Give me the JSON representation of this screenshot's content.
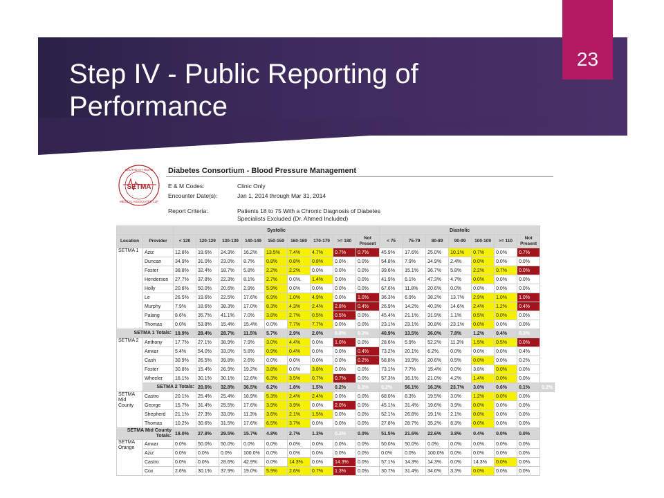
{
  "slide": {
    "number": "23",
    "title": "Step IV - Public Reporting of Performance"
  },
  "report": {
    "logo_text": "SOUTHEAST TEXAS MEDICAL ASSOCIATES, LLP",
    "logo_abbr": "SETMA",
    "title": "Diabetes Consortium - Blood Pressure Management",
    "em_codes_label": "E & M Codes:",
    "em_codes_value": "Clinic Only",
    "encounter_label": "Encounter Date(s):",
    "encounter_value": "Jan 1, 2014 through Mar 31, 2014",
    "criteria_label": "Report Criteria:",
    "criteria_value_1": "Patients 18 to 75 With a Chronic Diagnosis of Diabetes",
    "criteria_value_2": "Specialists Excluded (Dr. Ahmed Included)"
  },
  "table": {
    "group_headers": {
      "systolic": "Systolic",
      "diastolic": "Diastolic"
    },
    "columns": [
      "Location",
      "Provider",
      "< 120",
      "120-129",
      "130-139",
      "140-149",
      "150-159",
      "160-169",
      "170-179",
      ">= 180",
      "Not Present",
      "< 75",
      "75-79",
      "80-89",
      "90-99",
      "100-109",
      ">= 110",
      "Not Present"
    ],
    "highlight_colors": {
      "yellow": "#f5f100",
      "red": "#a3151c"
    },
    "rows": [
      {
        "loc": "SETMA 1",
        "locspan": 9,
        "prov": "Aziz",
        "v": [
          "12.8%",
          "19.6%",
          "24.3%",
          "16.2%",
          "13.5%",
          "7.4%",
          "4.7%",
          "0.7%",
          "0.7%",
          "45.9%",
          "17.6%",
          "25.0%",
          "10.1%",
          "0.7%",
          "0.0%",
          "0.7%"
        ],
        "h": "....yyyrr...yy.r"
      },
      {
        "prov": "Duncan",
        "v": [
          "34.9%",
          "31.0%",
          "23.0%",
          "8.7%",
          "0.8%",
          "0.8%",
          "0.8%",
          "0.0%",
          "0.0%",
          "54.8%",
          "7.9%",
          "34.9%",
          "2.4%",
          "0.0%",
          "0.0%",
          "0.0%"
        ],
        "h": "....yyy......y.."
      },
      {
        "prov": "Foster",
        "v": [
          "38.8%",
          "32.4%",
          "18.7%",
          "5.8%",
          "2.2%",
          "2.2%",
          "0.0%",
          "0.0%",
          "0.0%",
          "39.6%",
          "15.1%",
          "36.7%",
          "5.8%",
          "2.2%",
          "0.7%",
          "0.0%"
        ],
        "h": "....yy.......yyr."
      },
      {
        "prov": "Henderson",
        "v": [
          "27.7%",
          "37.8%",
          "22.3%",
          "8.1%",
          "2.7%",
          "0.0%",
          "1.4%",
          "0.0%",
          "0.0%",
          "41.9%",
          "6.1%",
          "47.3%",
          "4.7%",
          "0.0%",
          "0.0%",
          "0.0%"
        ],
        "h": "....y.y......y.."
      },
      {
        "prov": "Holly",
        "v": [
          "20.6%",
          "50.0%",
          "20.6%",
          "2.9%",
          "5.9%",
          "0.0%",
          "0.0%",
          "0.0%",
          "0.0%",
          "67.6%",
          "11.8%",
          "20.6%",
          "0.0%",
          "0.0%",
          "0.0%",
          "0.0%"
        ],
        "h": "....y..........."
      },
      {
        "prov": "Le",
        "v": [
          "26.5%",
          "19.6%",
          "22.5%",
          "17.6%",
          "6.9%",
          "1.0%",
          "4.9%",
          "0.0%",
          "1.0%",
          "36.3%",
          "6.9%",
          "38.2%",
          "13.7%",
          "2.9%",
          "1.0%",
          "1.0%"
        ],
        "h": "....yyy.r....yyrr"
      },
      {
        "prov": "Murphy",
        "v": [
          "7.9%",
          "18.6%",
          "38.3%",
          "17.0%",
          "8.3%",
          "4.3%",
          "2.4%",
          "2.8%",
          "0.4%",
          "26.9%",
          "14.2%",
          "40.3%",
          "14.6%",
          "2.4%",
          "1.2%",
          "0.4%"
        ],
        "h": "....yyyrr....yyrr"
      },
      {
        "prov": "Palang",
        "v": [
          "8.6%",
          "35.7%",
          "41.1%",
          "7.0%",
          "3.8%",
          "2.7%",
          "0.5%",
          "0.5%",
          "0.0%",
          "45.4%",
          "21.1%",
          "31.9%",
          "1.1%",
          "0.5%",
          "0.0%",
          "0.0%"
        ],
        "h": "....yyyr.....yy.."
      },
      {
        "prov": "Thomas",
        "v": [
          "0.0%",
          "53.8%",
          "15.4%",
          "15.4%",
          "0.0%",
          "7.7%",
          "7.7%",
          "0.0%",
          "0.0%",
          "23.1%",
          "23.1%",
          "30.8%",
          "23.1%",
          "0.0%",
          "0.0%",
          "0.0%"
        ],
        "h": ".....yy......y..."
      },
      {
        "total": "SETMA 1 Totals:",
        "v": [
          "19.9%",
          "28.4%",
          "28.7%",
          "11.5%",
          "5.7%",
          "2.9%",
          "2.0%",
          "0.8%",
          "0.3%",
          "40.9%",
          "13.5%",
          "36.0%",
          "7.8%",
          "1.2%",
          "0.4%",
          "0.3%"
        ],
        "h": "....yyyrr....yyrr"
      },
      {
        "loc": "SETMA 2",
        "locspan": 6,
        "prov": "Anthony",
        "v": [
          "17.7%",
          "27.1%",
          "38.9%",
          "7.9%",
          "3.0%",
          "4.4%",
          "0.0%",
          "1.0%",
          "0.0%",
          "28.6%",
          "5.9%",
          "52.2%",
          "11.3%",
          "1.5%",
          "0.5%",
          "0.0%"
        ],
        "h": "....yy.r.....yyr."
      },
      {
        "prov": "Anwar",
        "v": [
          "5.4%",
          "54.0%",
          "33.0%",
          "5.8%",
          "0.9%",
          "0.4%",
          "0.0%",
          "0.0%",
          "0.4%",
          "73.2%",
          "20.1%",
          "6.2%",
          "0.0%",
          "0.0%",
          "0.0%",
          "0.4%"
        ],
        "h": "....yy..r.......r"
      },
      {
        "prov": "Cash",
        "v": [
          "30.9%",
          "26.5%",
          "39.8%",
          "2.6%",
          "0.0%",
          "0.0%",
          "0.0%",
          "0.0%",
          "0.2%",
          "58.8%",
          "19.9%",
          "20.6%",
          "0.5%",
          "0.0%",
          "0.0%",
          "0.2%"
        ],
        "h": "........r....y..r"
      },
      {
        "prov": "Foster",
        "v": [
          "30.8%",
          "15.4%",
          "26.9%",
          "19.2%",
          "3.8%",
          "0.0%",
          "3.8%",
          "0.0%",
          "0.0%",
          "73.1%",
          "7.7%",
          "15.4%",
          "0.0%",
          "3.8%",
          "0.0%",
          "0.0%"
        ],
        "h": "....y.y.......y.."
      },
      {
        "prov": "Wheeler",
        "v": [
          "16.1%",
          "30.1%",
          "30.1%",
          "12.6%",
          "6.3%",
          "3.5%",
          "0.7%",
          "0.7%",
          "0.0%",
          "57.3%",
          "16.1%",
          "21.0%",
          "4.2%",
          "1.4%",
          "0.0%",
          "0.0%"
        ],
        "h": "....yyyr.....yy.."
      },
      {
        "total": "SETMA 2 Totals:",
        "v": [
          "20.6%",
          "32.8%",
          "36.5%",
          "6.2%",
          "1.8%",
          "1.5%",
          "0.2%",
          "0.3%",
          "0.2%",
          "56.1%",
          "16.3%",
          "23.7%",
          "3.0%",
          "0.6%",
          "0.1%",
          "0.2%"
        ],
        "h": "....yyyrr....yyrr"
      },
      {
        "loc": "SETMA Mid County",
        "locspan": 4,
        "prov": "Castro",
        "v": [
          "20.1%",
          "25.4%",
          "25.4%",
          "18.9%",
          "5.3%",
          "2.4%",
          "2.4%",
          "0.0%",
          "0.0%",
          "68.0%",
          "8.3%",
          "19.5%",
          "3.0%",
          "1.2%",
          "0.0%",
          "0.0%"
        ],
        "h": "....yyy......yy.."
      },
      {
        "prov": "George",
        "v": [
          "15.7%",
          "31.4%",
          "25.5%",
          "17.6%",
          "3.9%",
          "3.9%",
          "0.0%",
          "2.0%",
          "0.0%",
          "45.1%",
          "31.4%",
          "19.6%",
          "3.9%",
          "0.0%",
          "0.0%",
          "0.0%"
        ],
        "h": "....yy.r.....y..."
      },
      {
        "prov": "Shepherd",
        "v": [
          "21.1%",
          "27.3%",
          "33.0%",
          "11.3%",
          "3.6%",
          "2.1%",
          "1.5%",
          "0.0%",
          "0.0%",
          "52.1%",
          "26.8%",
          "19.1%",
          "2.1%",
          "0.0%",
          "0.0%",
          "0.0%"
        ],
        "h": "....yyy......y..."
      },
      {
        "prov": "Thomas",
        "v": [
          "10.2%",
          "30.6%",
          "31.5%",
          "17.6%",
          "6.5%",
          "3.7%",
          "0.0%",
          "0.0%",
          "0.0%",
          "27.8%",
          "28.7%",
          "35.2%",
          "8.3%",
          "0.0%",
          "0.0%",
          "0.0%"
        ],
        "h": "....yy.......y..."
      },
      {
        "total": "SETMA Mid County Totals:",
        "v": [
          "18.0%",
          "27.8%",
          "29.5%",
          "15.7%",
          "4.8%",
          "2.7%",
          "1.3%",
          "0.2%",
          "0.0%",
          "51.5%",
          "21.6%",
          "22.6%",
          "3.8%",
          "0.4%",
          "0.0%",
          "0.0%"
        ],
        "h": "....yyyr.....yy.."
      },
      {
        "loc": "SETMA Orange",
        "locspan": 4,
        "prov": "Anwar",
        "v": [
          "0.0%",
          "50.0%",
          "50.0%",
          "0.0%",
          "0.0%",
          "0.0%",
          "0.0%",
          "0.0%",
          "0.0%",
          "50.0%",
          "50.0%",
          "0.0%",
          "0.0%",
          "0.0%",
          "0.0%",
          "0.0%"
        ],
        "h": "................"
      },
      {
        "prov": "Aziz",
        "v": [
          "0.0%",
          "0.0%",
          "0.0%",
          "100.0%",
          "0.0%",
          "0.0%",
          "0.0%",
          "0.0%",
          "0.0%",
          "0.0%",
          "0.0%",
          "100.0%",
          "0.0%",
          "0.0%",
          "0.0%",
          "0.0%"
        ],
        "h": "................"
      },
      {
        "prov": "Castro",
        "v": [
          "0.0%",
          "0.0%",
          "28.6%",
          "42.9%",
          "0.0%",
          "14.3%",
          "0.0%",
          "14.3%",
          "0.0%",
          "57.1%",
          "14.3%",
          "14.3%",
          "0.0%",
          "14.3%",
          "0.0%",
          "0.0%"
        ],
        "h": ".....y.r......y.."
      },
      {
        "prov": "Cox",
        "v": [
          "2.6%",
          "30.1%",
          "37.9%",
          "19.0%",
          "5.9%",
          "2.6%",
          "0.7%",
          "1.3%",
          "0.0%",
          "30.7%",
          "31.4%",
          "34.6%",
          "3.3%",
          "0.0%",
          "0.0%",
          "0.0%"
        ],
        "h": "....yyyr.....y..."
      }
    ]
  }
}
